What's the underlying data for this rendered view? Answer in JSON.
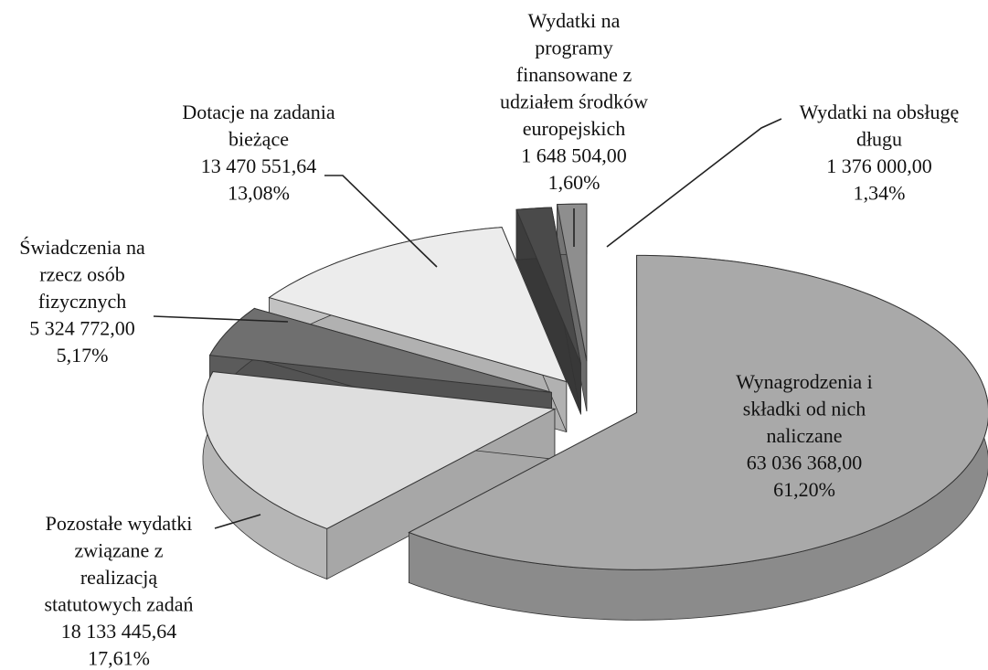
{
  "chart_data": {
    "type": "pie",
    "categories": [
      "Wynagrodzenia i\nskładki od nich\nnaliczane",
      "Pozostałe wydatki\nzwiązane z\nrealizacją\nstatutowych zadań",
      "Świadczenia na\nrzecz osób\nfizycznych",
      "Dotacje na zadania\nbieżące",
      "Wydatki na\nprogramy\nfinansowane z\nudziałem środków\neuropejskich",
      "Wydatki na obsługę\ndługu"
    ],
    "values": [
      63036368.0,
      18133445.64,
      5324772.0,
      13470551.64,
      1648504.0,
      1376000.0
    ],
    "value_labels": [
      "63 036 368,00",
      "18 133 445,64",
      "5 324 772,00",
      "13 470 551,64",
      "1 648 504,00",
      "1 376 000,00"
    ],
    "percentages": [
      61.2,
      17.61,
      5.17,
      13.08,
      1.6,
      1.34
    ],
    "percent_labels": [
      "61,20%",
      "17,61%",
      "5,17%",
      "13,08%",
      "1,60%",
      "1,34%"
    ],
    "colors": [
      "#a9a9a9",
      "#dedede",
      "#6f6f6f",
      "#ececec",
      "#4a4a4a",
      "#8e8e8e"
    ]
  }
}
